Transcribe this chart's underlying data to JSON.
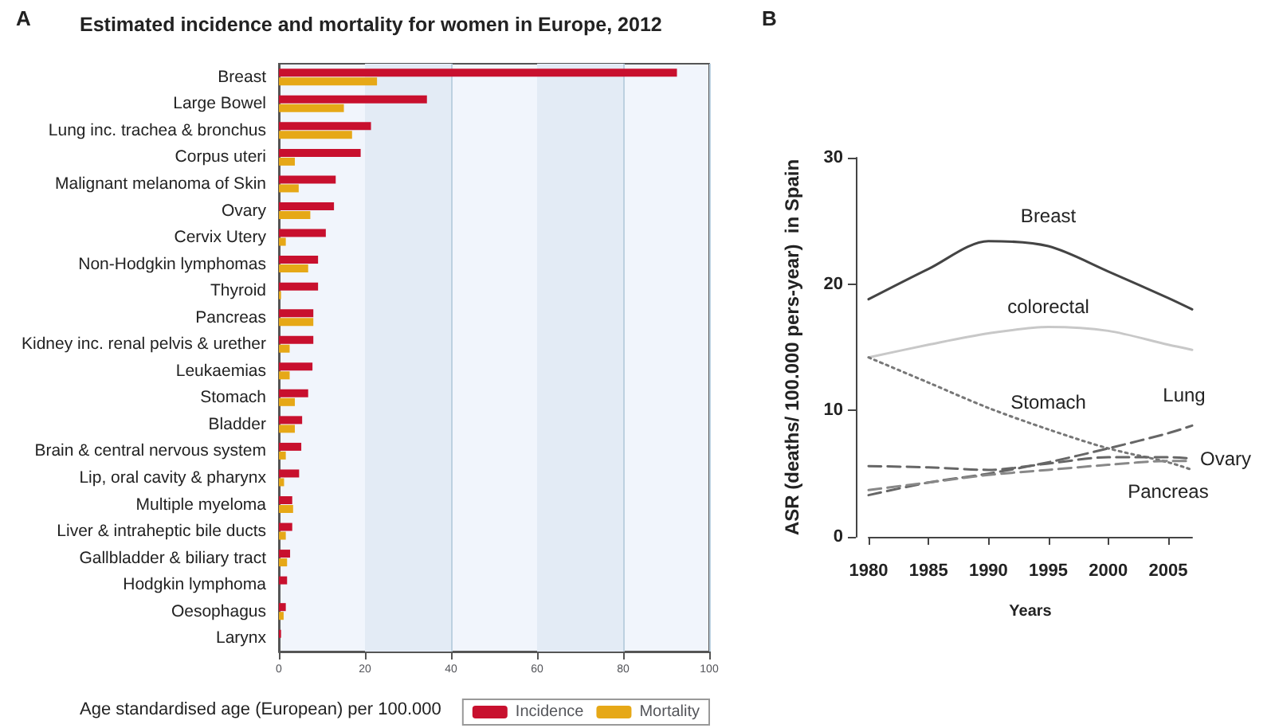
{
  "chart_data": [
    {
      "type": "bar",
      "orientation": "horizontal",
      "title": "Estimated incidence and mortality for women in Europe, 2012",
      "annotations": [
        "A"
      ],
      "xlabel": "Age standardised age (European) per 100.000",
      "categories": [
        "Breast",
        "Large Bowel",
        "Lung inc. trachea & bronchus",
        "Corpus uteri",
        "Malignant melanoma of Skin",
        "Ovary",
        "Cervix Utery",
        "Non-Hodgkin lymphomas",
        "Thyroid",
        "Pancreas",
        "Kidney inc. renal pelvis & urether",
        "Leukaemias",
        "Stomach",
        "Bladder",
        "Brain & central nervous system",
        "Lip, oral cavity & pharynx",
        "Multiple myeloma",
        "Liver & intraheptic bile ducts",
        "Gallbladder & biliary tract",
        "Hodgkin lymphoma",
        "Oesophagus",
        "Larynx"
      ],
      "series": [
        {
          "name": "Incidence",
          "color": "#c8102e",
          "values": [
            92.5,
            34.4,
            21.4,
            19.0,
            13.2,
            12.8,
            10.9,
            9.1,
            9.1,
            8.0,
            8.0,
            7.8,
            6.8,
            5.4,
            5.2,
            4.7,
            3.1,
            3.1,
            2.6,
            1.9,
            1.6,
            0.5
          ]
        },
        {
          "name": "Mortality",
          "color": "#e6a817",
          "values": [
            22.8,
            15.1,
            17.0,
            3.7,
            4.6,
            7.3,
            1.6,
            6.8,
            0.5,
            8.0,
            2.5,
            2.5,
            3.7,
            3.7,
            1.6,
            1.2,
            3.3,
            1.6,
            1.9,
            null,
            1.1,
            null
          ]
        }
      ],
      "xlim": [
        0,
        100
      ],
      "xticks": [
        0,
        20,
        40,
        60,
        80,
        100
      ],
      "grid": "x",
      "bands": [
        {
          "axis": "x",
          "from": 20,
          "to": 40,
          "color": "#e3ebf5"
        },
        {
          "axis": "x",
          "from": 60,
          "to": 80,
          "color": "#e3ebf5"
        }
      ],
      "legend": "bottom right"
    },
    {
      "type": "line",
      "annotations": [
        "B"
      ],
      "xlabel": "Years",
      "ylabel": "ASR (deaths/ 100.000 pers-year)  in Spain",
      "x": [
        1980,
        1985,
        1990,
        1995,
        2000,
        2005,
        2007
      ],
      "series": [
        {
          "name": "Breast",
          "color": "#444444",
          "line_style": "solid",
          "values": [
            18.8,
            21.2,
            23.4,
            23.0,
            21.0,
            18.9,
            18.0
          ]
        },
        {
          "name": "colorectal",
          "color": "#c8c8c8",
          "line_style": "solid",
          "values": [
            14.2,
            15.2,
            16.1,
            16.6,
            16.3,
            15.2,
            14.8
          ]
        },
        {
          "name": "Stomach",
          "color": "#777777",
          "line_style": "dotted",
          "values": [
            14.2,
            12.2,
            10.2,
            8.5,
            7.0,
            5.9,
            5.3
          ]
        },
        {
          "name": "Lung",
          "color": "#666666",
          "line_style": "dashed",
          "values": [
            3.3,
            4.3,
            5.0,
            5.9,
            7.0,
            8.2,
            8.8
          ]
        },
        {
          "name": "Ovary",
          "color": "#666666",
          "line_style": "dashed",
          "values": [
            5.6,
            5.5,
            5.3,
            5.8,
            6.3,
            6.3,
            6.2
          ]
        },
        {
          "name": "Pancreas",
          "color": "#888888",
          "line_style": "dashed",
          "values": [
            3.7,
            4.3,
            4.9,
            5.3,
            5.7,
            6.0,
            6.0
          ]
        }
      ],
      "xlim": [
        1980,
        2007
      ],
      "xticks": [
        1980,
        1985,
        1990,
        1995,
        2000,
        2005
      ],
      "ylim": [
        0,
        30
      ],
      "yticks": [
        0,
        10,
        20,
        30
      ],
      "grid": false,
      "legend": false,
      "marker": "none"
    }
  ]
}
